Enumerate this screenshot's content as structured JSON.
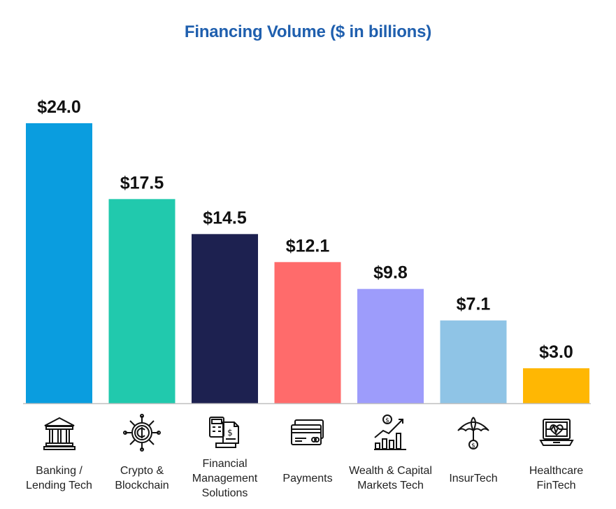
{
  "chart_data": {
    "type": "bar",
    "title": "Financing Volume ($ in billions)",
    "xlabel": "",
    "ylabel": "",
    "ylim": [
      0,
      24
    ],
    "grid": false,
    "legend": "none",
    "categories": [
      "Banking /\nLending Tech",
      "Crypto &\nBlockchain",
      "Financial\nManagement\nSolutions",
      "Payments",
      "Wealth & Capital\nMarkets Tech",
      "InsurTech",
      "Healthcare\nFinTech"
    ],
    "values": [
      24.0,
      17.5,
      14.5,
      12.1,
      9.8,
      7.1,
      3.0
    ],
    "value_labels": [
      "$24.0",
      "$17.5",
      "$14.5",
      "$12.1",
      "$9.8",
      "$7.1",
      "$3.0"
    ],
    "colors": [
      "#0a9ddf",
      "#21c9ad",
      "#1d2150",
      "#ff6b6b",
      "#9d9cfb",
      "#8fc4e6",
      "#ffb703"
    ],
    "icons": [
      "bank-icon",
      "crypto-coin-icon",
      "calculator-document-icon",
      "credit-cards-icon",
      "growth-chart-icon",
      "umbrella-icon",
      "laptop-heartbeat-icon"
    ]
  }
}
